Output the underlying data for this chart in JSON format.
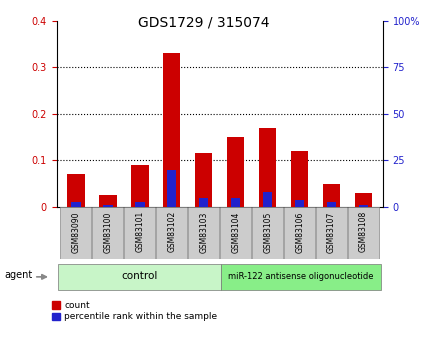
{
  "title": "GDS1729 / 315074",
  "samples": [
    "GSM83090",
    "GSM83100",
    "GSM83101",
    "GSM83102",
    "GSM83103",
    "GSM83104",
    "GSM83105",
    "GSM83106",
    "GSM83107",
    "GSM83108"
  ],
  "red_values": [
    0.07,
    0.025,
    0.09,
    0.33,
    0.115,
    0.15,
    0.17,
    0.12,
    0.05,
    0.03
  ],
  "blue_values": [
    2.5,
    1.0,
    2.5,
    20.0,
    5.0,
    5.0,
    8.0,
    4.0,
    2.5,
    1.0
  ],
  "red_color": "#cc0000",
  "blue_color": "#2222cc",
  "ylim_left": [
    0,
    0.4
  ],
  "ylim_right": [
    0,
    100
  ],
  "yticks_left": [
    0.0,
    0.1,
    0.2,
    0.3,
    0.4
  ],
  "ytick_labels_left": [
    "0",
    "0.1",
    "0.2",
    "0.3",
    "0.4"
  ],
  "yticks_right": [
    0,
    25,
    50,
    75,
    100
  ],
  "ytick_labels_right": [
    "0",
    "25",
    "50",
    "75",
    "100%"
  ],
  "control_label": "control",
  "treatment_label": "miR-122 antisense oligonucleotide",
  "agent_label": "agent",
  "legend_count": "count",
  "legend_pct": "percentile rank within the sample",
  "control_bg": "#c8f5c8",
  "treatment_bg": "#88ee88",
  "tick_bg": "#cccccc",
  "title_fontsize": 10,
  "tick_fontsize": 7,
  "bar_fontsize": 5.5
}
